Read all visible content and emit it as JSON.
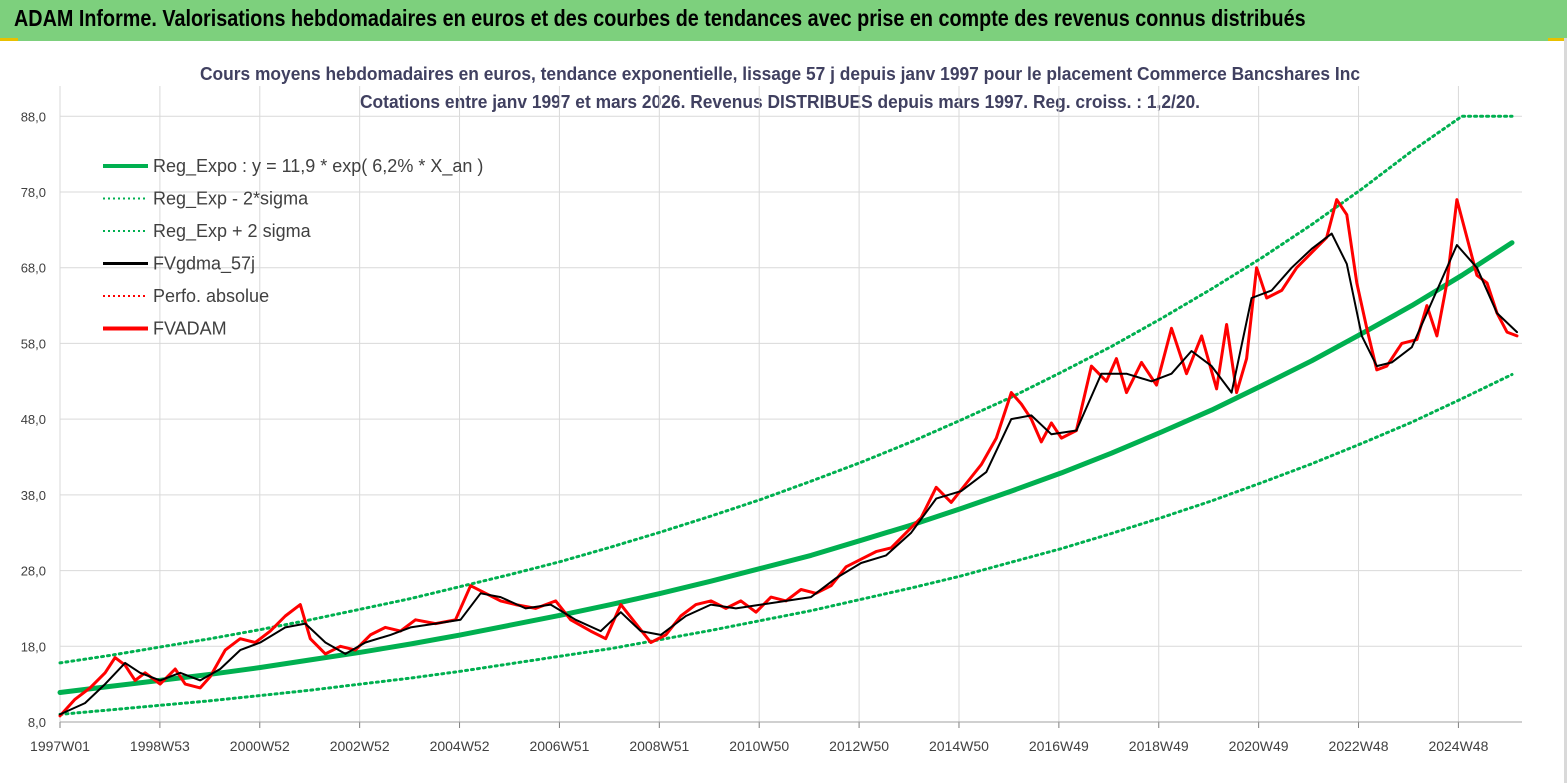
{
  "header": {
    "title": "ADAM Informe. Valorisations hebdomadaires en euros et des courbes de tendances avec prise en compte des revenus connus distribués"
  },
  "colors": {
    "header_bg": "#7dd07d",
    "reg": "#00b050",
    "fv_gdma": "#000000",
    "fv_adam": "#ff0000",
    "grid": "#d9d9d9"
  },
  "chart_data": {
    "type": "line",
    "title": "Cours moyens hebdomadaires en euros, tendance exponentielle, lissage 57 j depuis janv 1997  pour le placement Commerce Bancshares Inc",
    "subtitle": "Cotations entre janv 1997 et mars 2026. Revenus  DISTRIBUES depuis mars 1997.  Reg. croiss. : 1,2/20.",
    "xlabel": "",
    "ylabel": "",
    "x_range": [
      1997.0,
      2026.2
    ],
    "ylim": [
      8,
      92
    ],
    "y_ticks": [
      "8,0",
      "18,0",
      "28,0",
      "38,0",
      "48,0",
      "58,0",
      "68,0",
      "78,0",
      "88,0"
    ],
    "x_ticks": [
      "1997W01",
      "1998W53",
      "2000W52",
      "2002W52",
      "2004W52",
      "2006W51",
      "2008W51",
      "2010W50",
      "2012W50",
      "2014W50",
      "2016W49",
      "2018W49",
      "2020W49",
      "2022W48",
      "2024W48"
    ],
    "grid": true,
    "legend_position": "top-left",
    "legend": [
      {
        "label": "Reg_Expo : y = 11,9 * exp( 6,2% *  X_an )",
        "style": "solid-thick",
        "color": "#00b050"
      },
      {
        "label": "Reg_Exp - 2*sigma",
        "style": "dotted",
        "color": "#00b050"
      },
      {
        "label": "Reg_Exp + 2 sigma",
        "style": "dotted",
        "color": "#00b050"
      },
      {
        "label": "FVgdma_57j",
        "style": "solid",
        "color": "#000000"
      },
      {
        "label": "Perfo. absolue",
        "style": "dotted",
        "color": "#ff0000"
      },
      {
        "label": "FVADAM",
        "style": "solid-thick",
        "color": "#ff0000"
      }
    ],
    "series": [
      {
        "name": "Reg_Expo : y = 11,9 * exp( 6,2% *  X_an )",
        "x": [
          1997,
          1998,
          1999,
          2000,
          2001,
          2002,
          2003,
          2004,
          2005,
          2006,
          2007,
          2008,
          2009,
          2010,
          2011,
          2012,
          2013,
          2014,
          2015,
          2016,
          2017,
          2018,
          2019,
          2020,
          2021,
          2022,
          2023,
          2024,
          2025,
          2026
        ],
        "values": [
          11.9,
          12.7,
          13.5,
          14.3,
          15.2,
          16.2,
          17.2,
          18.3,
          19.5,
          20.8,
          22.1,
          23.5,
          25.0,
          26.6,
          28.3,
          30.0,
          32.0,
          34.0,
          36.2,
          38.5,
          40.9,
          43.5,
          46.3,
          49.2,
          52.4,
          55.7,
          59.3,
          63.0,
          67.0,
          71.3
        ]
      },
      {
        "name": "Reg_Exp - 2*sigma",
        "x": [
          1997,
          1998,
          1999,
          2000,
          2001,
          2002,
          2003,
          2004,
          2005,
          2006,
          2007,
          2008,
          2009,
          2010,
          2011,
          2012,
          2013,
          2014,
          2015,
          2016,
          2017,
          2018,
          2019,
          2020,
          2021,
          2022,
          2023,
          2024,
          2025,
          2026
        ],
        "values": [
          9.0,
          9.6,
          10.2,
          10.8,
          11.5,
          12.2,
          13.0,
          13.8,
          14.7,
          15.7,
          16.7,
          17.7,
          18.9,
          20.1,
          21.4,
          22.7,
          24.2,
          25.7,
          27.3,
          29.1,
          30.9,
          32.9,
          35.0,
          37.2,
          39.6,
          42.1,
          44.8,
          47.6,
          50.7,
          53.9
        ]
      },
      {
        "name": "Reg_Exp + 2 sigma",
        "x": [
          1997,
          1998,
          1999,
          2000,
          2001,
          2002,
          2003,
          2004,
          2005,
          2006,
          2007,
          2008,
          2009,
          2010,
          2011,
          2012,
          2013,
          2014,
          2015,
          2016,
          2017,
          2018,
          2019,
          2020,
          2021,
          2022,
          2023,
          2024,
          2025,
          2026
        ],
        "values": [
          15.8,
          16.8,
          17.9,
          19.0,
          20.2,
          21.5,
          22.9,
          24.3,
          25.9,
          27.5,
          29.2,
          31.1,
          33.1,
          35.2,
          37.4,
          39.8,
          42.3,
          45.0,
          47.9,
          50.9,
          54.2,
          57.6,
          61.3,
          65.2,
          69.3,
          73.7,
          78.4,
          83.4,
          88.0,
          88.0
        ]
      },
      {
        "name": "FVgdma_57j",
        "x": [
          1997.0,
          1997.5,
          1997.9,
          1998.3,
          1998.6,
          1999.0,
          1999.4,
          1999.8,
          2000.2,
          2000.6,
          2001.0,
          2001.5,
          2001.9,
          2002.3,
          2002.7,
          2003.1,
          2003.6,
          2004.0,
          2004.5,
          2005.0,
          2005.4,
          2005.8,
          2006.3,
          2006.8,
          2007.3,
          2007.8,
          2008.2,
          2008.6,
          2009.0,
          2009.5,
          2010.0,
          2010.5,
          2011.0,
          2011.5,
          2012.0,
          2012.5,
          2013.0,
          2013.5,
          2014.0,
          2014.5,
          2015.0,
          2015.5,
          2016.0,
          2016.4,
          2016.8,
          2017.3,
          2017.8,
          2018.3,
          2018.8,
          2019.2,
          2019.6,
          2020.0,
          2020.4,
          2020.8,
          2021.2,
          2021.6,
          2022.0,
          2022.4,
          2022.7,
          2023.0,
          2023.3,
          2023.6,
          2024.0,
          2024.3,
          2024.6,
          2024.9,
          2025.3,
          2025.7,
          2026.1
        ],
        "values": [
          9.0,
          10.5,
          13.0,
          15.8,
          14.5,
          13.5,
          14.5,
          13.5,
          15.0,
          17.5,
          18.5,
          20.5,
          21.0,
          18.5,
          17.0,
          18.5,
          19.5,
          20.5,
          21.0,
          21.5,
          25.0,
          24.5,
          23.0,
          23.5,
          21.5,
          20.0,
          22.5,
          20.0,
          19.5,
          22.0,
          23.5,
          23.0,
          23.5,
          24.0,
          24.5,
          27.0,
          29.0,
          30.0,
          33.0,
          37.5,
          38.5,
          41.0,
          48.0,
          48.5,
          46.0,
          46.5,
          54.0,
          54.0,
          53.0,
          54.0,
          57.0,
          55.0,
          51.5,
          64.0,
          65.0,
          68.0,
          70.5,
          72.5,
          68.5,
          59.0,
          55.0,
          55.5,
          57.5,
          62.0,
          66.5,
          71.0,
          68.0,
          62.0,
          59.5
        ]
      },
      {
        "name": "FVADAM",
        "x": [
          1997.0,
          1997.3,
          1997.6,
          1997.9,
          1998.1,
          1998.3,
          1998.5,
          1998.7,
          1999.0,
          1999.3,
          1999.5,
          1999.8,
          2000.0,
          2000.3,
          2000.6,
          2000.9,
          2001.2,
          2001.5,
          2001.8,
          2002.0,
          2002.3,
          2002.6,
          2002.9,
          2003.2,
          2003.5,
          2003.8,
          2004.1,
          2004.5,
          2004.9,
          2005.2,
          2005.5,
          2005.8,
          2006.1,
          2006.5,
          2006.9,
          2007.2,
          2007.6,
          2007.9,
          2008.2,
          2008.5,
          2008.8,
          2009.1,
          2009.4,
          2009.7,
          2010.0,
          2010.3,
          2010.6,
          2010.9,
          2011.2,
          2011.5,
          2011.8,
          2012.1,
          2012.4,
          2012.7,
          2013.0,
          2013.3,
          2013.6,
          2013.9,
          2014.2,
          2014.5,
          2014.8,
          2015.1,
          2015.4,
          2015.7,
          2016.0,
          2016.2,
          2016.4,
          2016.6,
          2016.8,
          2017.0,
          2017.3,
          2017.6,
          2017.9,
          2018.1,
          2018.3,
          2018.6,
          2018.9,
          2019.2,
          2019.5,
          2019.8,
          2020.1,
          2020.3,
          2020.5,
          2020.7,
          2020.9,
          2021.1,
          2021.4,
          2021.7,
          2022.0,
          2022.3,
          2022.5,
          2022.7,
          2022.9,
          2023.1,
          2023.3,
          2023.5,
          2023.8,
          2024.1,
          2024.3,
          2024.5,
          2024.7,
          2024.9,
          2025.1,
          2025.3,
          2025.5,
          2025.7,
          2025.9,
          2026.1
        ],
        "values": [
          8.8,
          11.0,
          12.5,
          14.5,
          16.5,
          15.5,
          13.5,
          14.5,
          13.0,
          15.0,
          13.0,
          12.5,
          14.0,
          17.5,
          19.0,
          18.5,
          20.0,
          22.0,
          23.5,
          19.0,
          17.0,
          18.0,
          17.5,
          19.5,
          20.5,
          20.0,
          21.5,
          21.0,
          21.5,
          26.0,
          25.0,
          24.0,
          23.5,
          23.0,
          24.0,
          21.5,
          20.0,
          19.0,
          23.5,
          21.0,
          18.5,
          19.5,
          22.0,
          23.5,
          24.0,
          23.0,
          24.0,
          22.5,
          24.5,
          24.0,
          25.5,
          25.0,
          26.0,
          28.5,
          29.5,
          30.5,
          31.0,
          33.0,
          35.0,
          39.0,
          37.0,
          39.5,
          42.0,
          45.5,
          51.5,
          50.0,
          48.0,
          45.0,
          47.5,
          45.5,
          46.5,
          55.0,
          53.0,
          56.0,
          51.5,
          55.5,
          52.5,
          60.0,
          54.0,
          59.0,
          52.0,
          60.5,
          51.5,
          56.0,
          68.0,
          64.0,
          65.0,
          68.0,
          70.0,
          72.0,
          77.0,
          75.0,
          66.0,
          60.0,
          54.5,
          55.0,
          58.0,
          58.5,
          63.0,
          59.0,
          66.0,
          77.0,
          72.0,
          67.0,
          66.0,
          62.0,
          59.5,
          59.0
        ]
      }
    ]
  }
}
